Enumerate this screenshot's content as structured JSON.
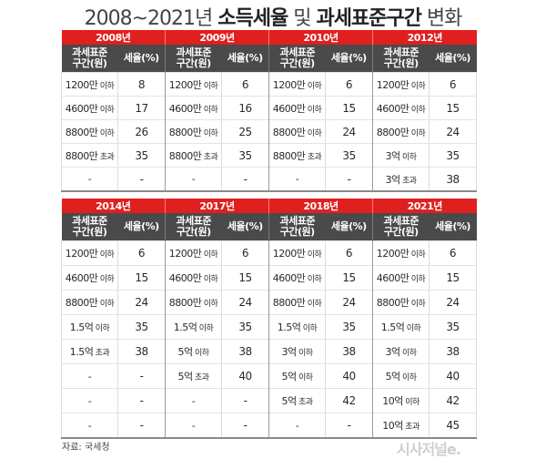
{
  "title": {
    "part1": "2008~2021년 ",
    "part2": "소득세율",
    "part3": " 및 ",
    "part4": "과세표준구간",
    "part5": " 변화"
  },
  "column_headers": {
    "bracket": "과세표준 구간(원)",
    "bracket_line1": "과세표준",
    "bracket_line2": "구간(원)",
    "rate": "세율(%)"
  },
  "top_table": {
    "years": [
      "2008년",
      "2009년",
      "2010년",
      "2012년"
    ],
    "rows": [
      [
        {
          "b": "1200만",
          "u": " 이하",
          "r": "8"
        },
        {
          "b": "1200만",
          "u": " 이하",
          "r": "6"
        },
        {
          "b": "1200만",
          "u": " 이하",
          "r": "6"
        },
        {
          "b": "1200만",
          "u": " 이하",
          "r": "6"
        }
      ],
      [
        {
          "b": "4600만",
          "u": " 이하",
          "r": "17"
        },
        {
          "b": "4600만",
          "u": " 이하",
          "r": "16"
        },
        {
          "b": "4600만",
          "u": " 이하",
          "r": "15"
        },
        {
          "b": "4600만",
          "u": " 이하",
          "r": "15"
        }
      ],
      [
        {
          "b": "8800만",
          "u": " 이하",
          "r": "26"
        },
        {
          "b": "8800만",
          "u": " 이하",
          "r": "25"
        },
        {
          "b": "8800만",
          "u": " 이하",
          "r": "24"
        },
        {
          "b": "8800만",
          "u": " 이하",
          "r": "24"
        }
      ],
      [
        {
          "b": "8800만",
          "u": " 초과",
          "r": "35"
        },
        {
          "b": "8800만",
          "u": " 초과",
          "r": "35"
        },
        {
          "b": "8800만",
          "u": " 초과",
          "r": "35"
        },
        {
          "b": "3억",
          "u": " 이하",
          "r": "35"
        }
      ],
      [
        {
          "b": "-",
          "u": "",
          "r": "-"
        },
        {
          "b": "-",
          "u": "",
          "r": "-"
        },
        {
          "b": "-",
          "u": "",
          "r": "-"
        },
        {
          "b": "3억",
          "u": " 초과",
          "r": "38"
        }
      ]
    ]
  },
  "bottom_table": {
    "years": [
      "2014년",
      "2017년",
      "2018년",
      "2021년"
    ],
    "rows": [
      [
        {
          "b": "1200만",
          "u": " 이하",
          "r": "6"
        },
        {
          "b": "1200만",
          "u": " 이하",
          "r": "6"
        },
        {
          "b": "1200만",
          "u": " 이하",
          "r": "6"
        },
        {
          "b": "1200만",
          "u": " 이하",
          "r": "6"
        }
      ],
      [
        {
          "b": "4600만",
          "u": " 이하",
          "r": "15"
        },
        {
          "b": "4600만",
          "u": " 이하",
          "r": "15"
        },
        {
          "b": "4600만",
          "u": " 이하",
          "r": "15"
        },
        {
          "b": "4600만",
          "u": " 이하",
          "r": "15"
        }
      ],
      [
        {
          "b": "8800만",
          "u": " 이하",
          "r": "24"
        },
        {
          "b": "8800만",
          "u": " 이하",
          "r": "24"
        },
        {
          "b": "8800만",
          "u": " 이하",
          "r": "24"
        },
        {
          "b": "8800만",
          "u": " 이하",
          "r": "24"
        }
      ],
      [
        {
          "b": "1.5억",
          "u": " 이하",
          "r": "35"
        },
        {
          "b": "1.5억",
          "u": " 이하",
          "r": "35"
        },
        {
          "b": "1.5억",
          "u": " 이하",
          "r": "35"
        },
        {
          "b": "1.5억",
          "u": " 이하",
          "r": "35"
        }
      ],
      [
        {
          "b": "1.5억",
          "u": " 초과",
          "r": "38"
        },
        {
          "b": "5억",
          "u": " 이하",
          "r": "38"
        },
        {
          "b": "3억",
          "u": " 이하",
          "r": "38"
        },
        {
          "b": "3억",
          "u": " 이하",
          "r": "38"
        }
      ],
      [
        {
          "b": "-",
          "u": "",
          "r": "-"
        },
        {
          "b": "5억",
          "u": " 초과",
          "r": "40"
        },
        {
          "b": "5억",
          "u": " 이하",
          "r": "40"
        },
        {
          "b": "5억",
          "u": " 이하",
          "r": "40"
        }
      ],
      [
        {
          "b": "-",
          "u": "",
          "r": "-"
        },
        {
          "b": "-",
          "u": "",
          "r": "-"
        },
        {
          "b": "5억",
          "u": " 초과",
          "r": "42"
        },
        {
          "b": "10억",
          "u": " 이하",
          "r": "42"
        }
      ],
      [
        {
          "b": "-",
          "u": "",
          "r": "-"
        },
        {
          "b": "-",
          "u": "",
          "r": "-"
        },
        {
          "b": "-",
          "u": "",
          "r": "-"
        },
        {
          "b": "10억",
          "u": " 초과",
          "r": "45"
        }
      ]
    ]
  },
  "source": "자료: 국세청",
  "logo": "시사저널e.",
  "colors": {
    "year_header_bg": "#e01f1f",
    "sub_header_bg": "#4a4a4a",
    "logo": "#cfcfcf"
  }
}
